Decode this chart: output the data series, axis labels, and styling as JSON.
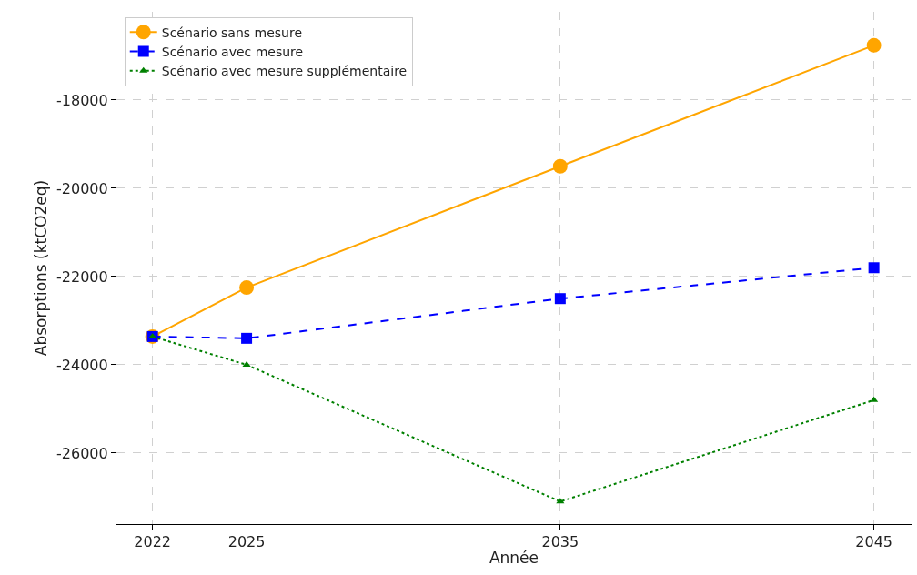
{
  "chart_data": {
    "type": "line",
    "xlabel": "Année",
    "ylabel": "Absorptions (ktCO2eq)",
    "x": [
      2022,
      2025,
      2035,
      2045
    ],
    "series": [
      {
        "name": "Scénario sans mesure",
        "color": "#ffa500",
        "values": [
          -23360,
          -22250,
          -19500,
          -16760
        ],
        "marker": "circle",
        "line_style": "solid"
      },
      {
        "name": "Scénario avec mesure",
        "color": "#0000ff",
        "values": [
          -23360,
          -23400,
          -22500,
          -21800
        ],
        "marker": "square",
        "line_style": "dashed"
      },
      {
        "name": "Scénario avec mesure supplémentaire",
        "color": "#008000",
        "values": [
          -23360,
          -24000,
          -27100,
          -24800
        ],
        "marker": "triangle",
        "line_style": "dotted"
      }
    ],
    "xlim": [
      2020.85,
      2046.2
    ],
    "xticks": [
      2022,
      2025,
      2035,
      2045
    ],
    "ylim": [
      -27610,
      -16000
    ],
    "yticks": [
      -26000,
      -24000,
      -22000,
      -20000,
      -18000
    ],
    "grid": true,
    "legend": "top left"
  }
}
